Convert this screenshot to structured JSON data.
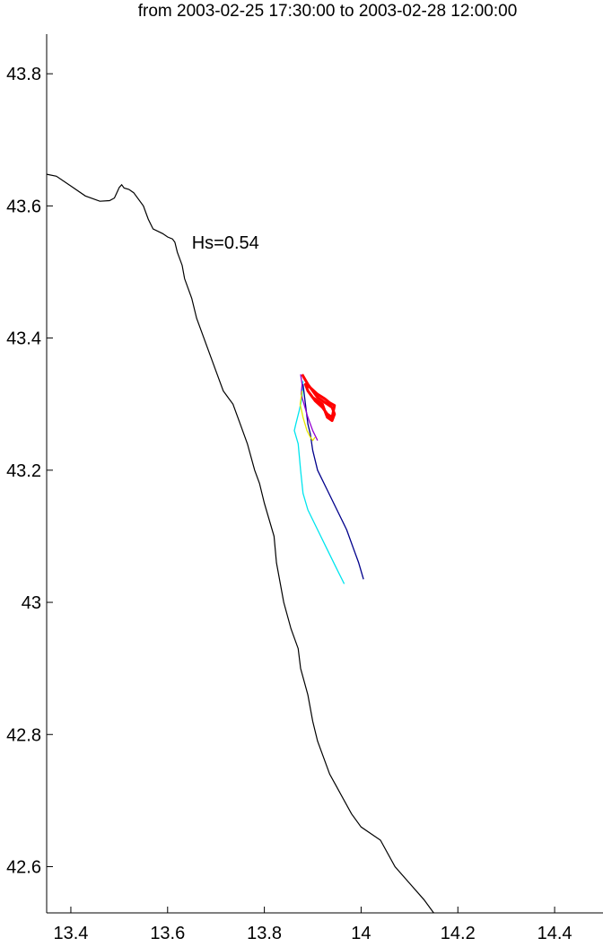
{
  "chart_data": {
    "type": "line",
    "title": "from 2003-02-25 17:30:00 to 2003-02-28 12:00:00",
    "xlabel": "",
    "ylabel": "",
    "xlim": [
      13.35,
      14.5
    ],
    "ylim": [
      42.53,
      43.86
    ],
    "grid": false,
    "x_ticks": [
      13.4,
      13.6,
      13.8,
      14,
      14.2,
      14.4
    ],
    "x_tick_labels": [
      "13.4",
      "13.6",
      "13.8",
      "14",
      "14.2",
      "14.4"
    ],
    "y_ticks": [
      42.6,
      42.8,
      43,
      43.2,
      43.4,
      43.6,
      43.8
    ],
    "y_tick_labels": [
      "42.6",
      "42.8",
      "43",
      "43.2",
      "43.4",
      "43.6",
      "43.8"
    ],
    "annotation": {
      "text": "Hs=0.54",
      "x": 13.65,
      "y": 43.545
    },
    "coastline": {
      "color": "#000000",
      "points": [
        [
          13.35,
          43.648
        ],
        [
          13.37,
          43.645
        ],
        [
          13.4,
          43.63
        ],
        [
          13.43,
          43.615
        ],
        [
          13.46,
          43.607
        ],
        [
          13.48,
          43.608
        ],
        [
          13.49,
          43.612
        ],
        [
          13.495,
          43.62
        ],
        [
          13.5,
          43.628
        ],
        [
          13.505,
          43.632
        ],
        [
          13.51,
          43.627
        ],
        [
          13.52,
          43.625
        ],
        [
          13.53,
          43.62
        ],
        [
          13.55,
          43.6
        ],
        [
          13.56,
          43.58
        ],
        [
          13.57,
          43.565
        ],
        [
          13.59,
          43.558
        ],
        [
          13.6,
          43.553
        ],
        [
          13.61,
          43.55
        ],
        [
          13.615,
          43.545
        ],
        [
          13.62,
          43.53
        ],
        [
          13.63,
          43.51
        ],
        [
          13.635,
          43.49
        ],
        [
          13.65,
          43.46
        ],
        [
          13.66,
          43.43
        ],
        [
          13.675,
          43.4
        ],
        [
          13.69,
          43.37
        ],
        [
          13.7,
          43.35
        ],
        [
          13.715,
          43.32
        ],
        [
          13.735,
          43.3
        ],
        [
          13.75,
          43.27
        ],
        [
          13.765,
          43.24
        ],
        [
          13.78,
          43.2
        ],
        [
          13.79,
          43.18
        ],
        [
          13.8,
          43.15
        ],
        [
          13.82,
          43.1
        ],
        [
          13.825,
          43.06
        ],
        [
          13.83,
          43.04
        ],
        [
          13.84,
          43.0
        ],
        [
          13.855,
          42.96
        ],
        [
          13.87,
          42.93
        ],
        [
          13.875,
          42.9
        ],
        [
          13.89,
          42.86
        ],
        [
          13.9,
          42.82
        ],
        [
          13.91,
          42.79
        ],
        [
          13.92,
          42.77
        ],
        [
          13.935,
          42.74
        ],
        [
          13.95,
          42.72
        ],
        [
          13.98,
          42.68
        ],
        [
          14.0,
          42.66
        ],
        [
          14.04,
          42.64
        ],
        [
          14.07,
          42.6
        ],
        [
          14.1,
          42.575
        ],
        [
          14.13,
          42.55
        ],
        [
          14.15,
          42.53
        ]
      ]
    },
    "series": [
      {
        "color": "#00e5ee",
        "points": [
          [
            13.88,
            43.335
          ],
          [
            13.878,
            43.31
          ],
          [
            13.872,
            43.29
          ],
          [
            13.865,
            43.27
          ],
          [
            13.862,
            43.26
          ],
          [
            13.87,
            43.24
          ],
          [
            13.875,
            43.2
          ],
          [
            13.88,
            43.165
          ],
          [
            13.89,
            43.14
          ],
          [
            13.91,
            43.11
          ],
          [
            13.93,
            43.08
          ],
          [
            13.95,
            43.05
          ],
          [
            13.965,
            43.028
          ]
        ]
      },
      {
        "color": "#00008b",
        "points": [
          [
            13.88,
            43.33
          ],
          [
            13.885,
            43.3
          ],
          [
            13.89,
            43.27
          ],
          [
            13.895,
            43.255
          ],
          [
            13.9,
            43.23
          ],
          [
            13.91,
            43.2
          ],
          [
            13.93,
            43.17
          ],
          [
            13.95,
            43.14
          ],
          [
            13.97,
            43.11
          ],
          [
            13.985,
            43.08
          ],
          [
            13.995,
            43.06
          ],
          [
            14.005,
            43.035
          ]
        ]
      },
      {
        "color": "#9400d3",
        "points": [
          [
            13.875,
            43.345
          ],
          [
            13.878,
            43.33
          ],
          [
            13.876,
            43.315
          ],
          [
            13.882,
            43.3
          ],
          [
            13.89,
            43.28
          ],
          [
            13.9,
            43.26
          ],
          [
            13.91,
            43.245
          ]
        ]
      },
      {
        "color": "#e6e600",
        "points": [
          [
            13.878,
            43.32
          ],
          [
            13.874,
            43.3
          ],
          [
            13.88,
            43.28
          ],
          [
            13.888,
            43.26
          ],
          [
            13.895,
            43.25
          ],
          [
            13.9,
            43.245
          ],
          [
            13.905,
            43.25
          ]
        ]
      },
      {
        "color": "#ff0000",
        "points": [
          [
            13.878,
            43.345
          ],
          [
            13.89,
            43.33
          ],
          [
            13.9,
            43.32
          ],
          [
            13.91,
            43.31
          ],
          [
            13.92,
            43.305
          ],
          [
            13.93,
            43.3
          ],
          [
            13.94,
            43.295
          ],
          [
            13.945,
            43.285
          ],
          [
            13.94,
            43.275
          ],
          [
            13.93,
            43.28
          ],
          [
            13.925,
            43.29
          ],
          [
            13.92,
            43.3
          ],
          [
            13.91,
            43.305
          ],
          [
            13.9,
            43.31
          ],
          [
            13.89,
            43.32
          ],
          [
            13.885,
            43.33
          ],
          [
            13.895,
            43.325
          ],
          [
            13.91,
            43.315
          ],
          [
            13.925,
            43.308
          ],
          [
            13.935,
            43.302
          ],
          [
            13.945,
            43.298
          ],
          [
            13.94,
            43.28
          ],
          [
            13.93,
            43.285
          ],
          [
            13.92,
            43.295
          ],
          [
            13.905,
            43.305
          ],
          [
            13.895,
            43.315
          ]
        ]
      }
    ]
  }
}
